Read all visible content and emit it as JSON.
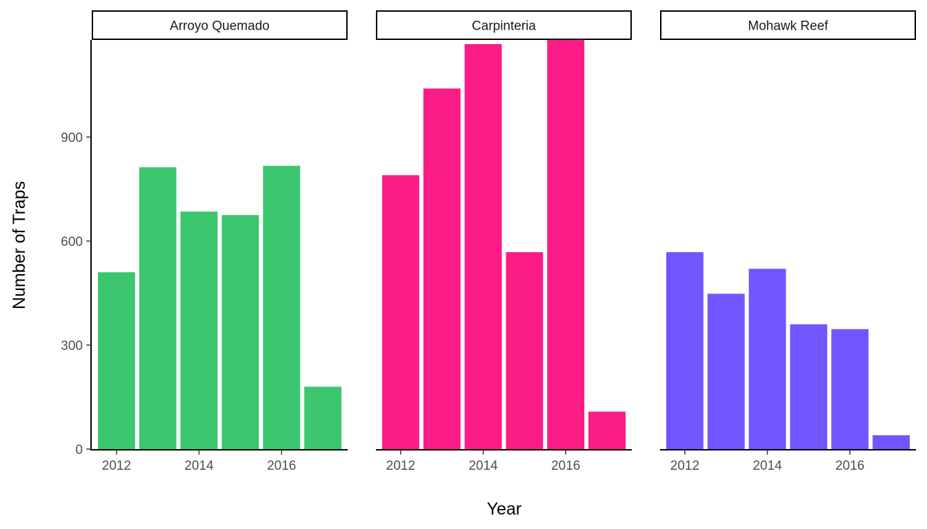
{
  "chart_data": {
    "type": "bar",
    "facet_by": "site",
    "xlabel": "Year",
    "ylabel": "Number of Traps",
    "ylim": [
      0,
      1180
    ],
    "y_ticks": [
      0,
      300,
      600,
      900
    ],
    "x_ticks": [
      2012,
      2014,
      2016
    ],
    "x": [
      2012,
      2013,
      2014,
      2015,
      2016,
      2017
    ],
    "panels": [
      {
        "name": "Arroyo Quemado",
        "color": "#3cc76e",
        "values": [
          510,
          813,
          685,
          675,
          817,
          180
        ]
      },
      {
        "name": "Carpinteria",
        "color": "#fc1c85",
        "values": [
          790,
          1040,
          1168,
          568,
          1180,
          108
        ]
      },
      {
        "name": "Mohawk Reef",
        "color": "#7056ff",
        "values": [
          568,
          448,
          520,
          360,
          346,
          40
        ]
      }
    ],
    "grid": false,
    "legend": "none"
  }
}
